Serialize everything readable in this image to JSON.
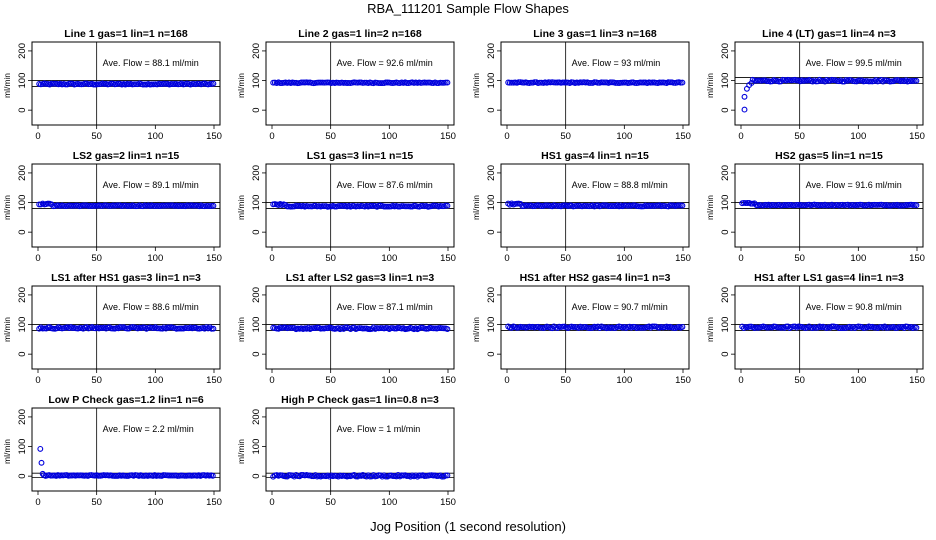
{
  "title": "RBA_111201   Sample Flow Shapes",
  "xlabel": "Jog Position (1 second resolution)",
  "ylabel": "ml/min",
  "series_color": "#0000dd",
  "chart_data": [
    {
      "type": "scatter",
      "title": "Line 1 gas=1 lin=1 n=168",
      "annotation": "Ave. Flow =  88.1  ml/min",
      "mean": 88.1,
      "xlim": [
        0,
        150
      ],
      "ylim": [
        -40,
        220
      ],
      "xticks": [
        0,
        50,
        100,
        150
      ],
      "yticks": [
        0,
        100,
        200
      ],
      "vline": 50,
      "hlines": [
        80,
        100
      ],
      "shape": "flat",
      "noise": 2
    },
    {
      "type": "scatter",
      "title": "Line 2 gas=1 lin=2 n=168",
      "annotation": "Ave. Flow =  92.6  ml/min",
      "mean": 92.6,
      "xlim": [
        0,
        150
      ],
      "ylim": [
        -40,
        220
      ],
      "xticks": [
        0,
        50,
        100,
        150
      ],
      "yticks": [
        0,
        100,
        200
      ],
      "vline": 50,
      "hlines": [],
      "shape": "flat",
      "noise": 1.5
    },
    {
      "type": "scatter",
      "title": "Line 3 gas=1 lin=3 n=168",
      "annotation": "Ave. Flow =  93  ml/min",
      "mean": 93,
      "xlim": [
        0,
        150
      ],
      "ylim": [
        -40,
        220
      ],
      "xticks": [
        0,
        50,
        100,
        150
      ],
      "yticks": [
        0,
        100,
        200
      ],
      "vline": 50,
      "hlines": [],
      "shape": "flat",
      "noise": 1.5
    },
    {
      "type": "scatter",
      "title": "Line 4 (LT) gas=1 lin=4 n=3",
      "annotation": "Ave. Flow =  99.5  ml/min",
      "mean": 99.5,
      "xlim": [
        0,
        150
      ],
      "ylim": [
        -40,
        220
      ],
      "xticks": [
        0,
        50,
        100,
        150
      ],
      "yticks": [
        0,
        100,
        200
      ],
      "vline": 50,
      "hlines": [
        90,
        110
      ],
      "shape": "rise",
      "noise": 3,
      "start_points": [
        [
          3,
          2
        ],
        [
          3,
          45
        ],
        [
          5,
          72
        ],
        [
          7,
          85
        ],
        [
          9,
          92
        ]
      ]
    },
    {
      "type": "scatter",
      "title": "LS2 gas=2 lin=1 n=15",
      "annotation": "Ave. Flow =  89.1  ml/min",
      "mean": 89.1,
      "xlim": [
        0,
        150
      ],
      "ylim": [
        -40,
        220
      ],
      "xticks": [
        0,
        50,
        100,
        150
      ],
      "yticks": [
        0,
        100,
        200
      ],
      "vline": 50,
      "hlines": [
        80,
        100
      ],
      "shape": "bump",
      "noise": 1.5
    },
    {
      "type": "scatter",
      "title": "LS1 gas=3 lin=1 n=15",
      "annotation": "Ave. Flow =  87.6  ml/min",
      "mean": 87.6,
      "xlim": [
        0,
        150
      ],
      "ylim": [
        -40,
        220
      ],
      "xticks": [
        0,
        50,
        100,
        150
      ],
      "yticks": [
        0,
        100,
        200
      ],
      "vline": 50,
      "hlines": [
        80,
        100
      ],
      "shape": "bump",
      "noise": 2
    },
    {
      "type": "scatter",
      "title": "HS1 gas=4 lin=1 n=15",
      "annotation": "Ave. Flow =  88.8  ml/min",
      "mean": 88.8,
      "xlim": [
        0,
        150
      ],
      "ylim": [
        -40,
        220
      ],
      "xticks": [
        0,
        50,
        100,
        150
      ],
      "yticks": [
        0,
        100,
        200
      ],
      "vline": 50,
      "hlines": [
        80,
        100
      ],
      "shape": "bump",
      "noise": 2
    },
    {
      "type": "scatter",
      "title": "HS2 gas=5 lin=1 n=15",
      "annotation": "Ave. Flow =  91.6  ml/min",
      "mean": 91.6,
      "xlim": [
        0,
        150
      ],
      "ylim": [
        -40,
        220
      ],
      "xticks": [
        0,
        50,
        100,
        150
      ],
      "yticks": [
        0,
        100,
        200
      ],
      "vline": 50,
      "hlines": [
        80,
        100
      ],
      "shape": "bump",
      "noise": 1.5
    },
    {
      "type": "scatter",
      "title": "LS1 after HS1 gas=3 lin=1 n=3",
      "annotation": "Ave. Flow =  88.6  ml/min",
      "mean": 88.6,
      "xlim": [
        0,
        150
      ],
      "ylim": [
        -40,
        220
      ],
      "xticks": [
        0,
        50,
        100,
        150
      ],
      "yticks": [
        0,
        100,
        200
      ],
      "vline": 50,
      "hlines": [
        80,
        100
      ],
      "shape": "flat",
      "noise": 3
    },
    {
      "type": "scatter",
      "title": "LS1 after LS2 gas=3 lin=1 n=3",
      "annotation": "Ave. Flow =  87.1  ml/min",
      "mean": 87.1,
      "xlim": [
        0,
        150
      ],
      "ylim": [
        -40,
        220
      ],
      "xticks": [
        0,
        50,
        100,
        150
      ],
      "yticks": [
        0,
        100,
        200
      ],
      "vline": 50,
      "hlines": [
        80,
        100
      ],
      "shape": "flat",
      "noise": 3
    },
    {
      "type": "scatter",
      "title": "HS1 after HS2 gas=4 lin=1 n=3",
      "annotation": "Ave. Flow =  90.7  ml/min",
      "mean": 90.7,
      "xlim": [
        0,
        150
      ],
      "ylim": [
        -40,
        220
      ],
      "xticks": [
        0,
        50,
        100,
        150
      ],
      "yticks": [
        0,
        100,
        200
      ],
      "vline": 50,
      "hlines": [
        80,
        100
      ],
      "shape": "flat",
      "noise": 3
    },
    {
      "type": "scatter",
      "title": "HS1 after LS1 gas=4 lin=1 n=3",
      "annotation": "Ave. Flow =  90.8  ml/min",
      "mean": 90.8,
      "xlim": [
        0,
        150
      ],
      "ylim": [
        -40,
        220
      ],
      "xticks": [
        0,
        50,
        100,
        150
      ],
      "yticks": [
        0,
        100,
        200
      ],
      "vline": 50,
      "hlines": [
        80,
        100
      ],
      "shape": "flat",
      "noise": 3
    },
    {
      "type": "scatter",
      "title": "Low P Check gas=1.2 lin=1 n=6",
      "annotation": "Ave. Flow =  2.2  ml/min",
      "mean": 2.2,
      "xlim": [
        0,
        150
      ],
      "ylim": [
        -40,
        220
      ],
      "xticks": [
        0,
        50,
        100,
        150
      ],
      "yticks": [
        0,
        100,
        200
      ],
      "vline": 50,
      "hlines": [
        -5,
        10
      ],
      "shape": "flat",
      "noise": 1.5,
      "start_points": [
        [
          2,
          92
        ],
        [
          3,
          45
        ],
        [
          4,
          8
        ]
      ]
    },
    {
      "type": "scatter",
      "title": "High P Check gas=1 lin=0.8 n=3",
      "annotation": "Ave. Flow =  1  ml/min",
      "mean": 1,
      "xlim": [
        0,
        150
      ],
      "ylim": [
        -40,
        220
      ],
      "xticks": [
        0,
        50,
        100,
        150
      ],
      "yticks": [
        0,
        100,
        200
      ],
      "vline": 50,
      "hlines": [
        -5,
        10
      ],
      "shape": "flat",
      "noise": 3
    }
  ]
}
